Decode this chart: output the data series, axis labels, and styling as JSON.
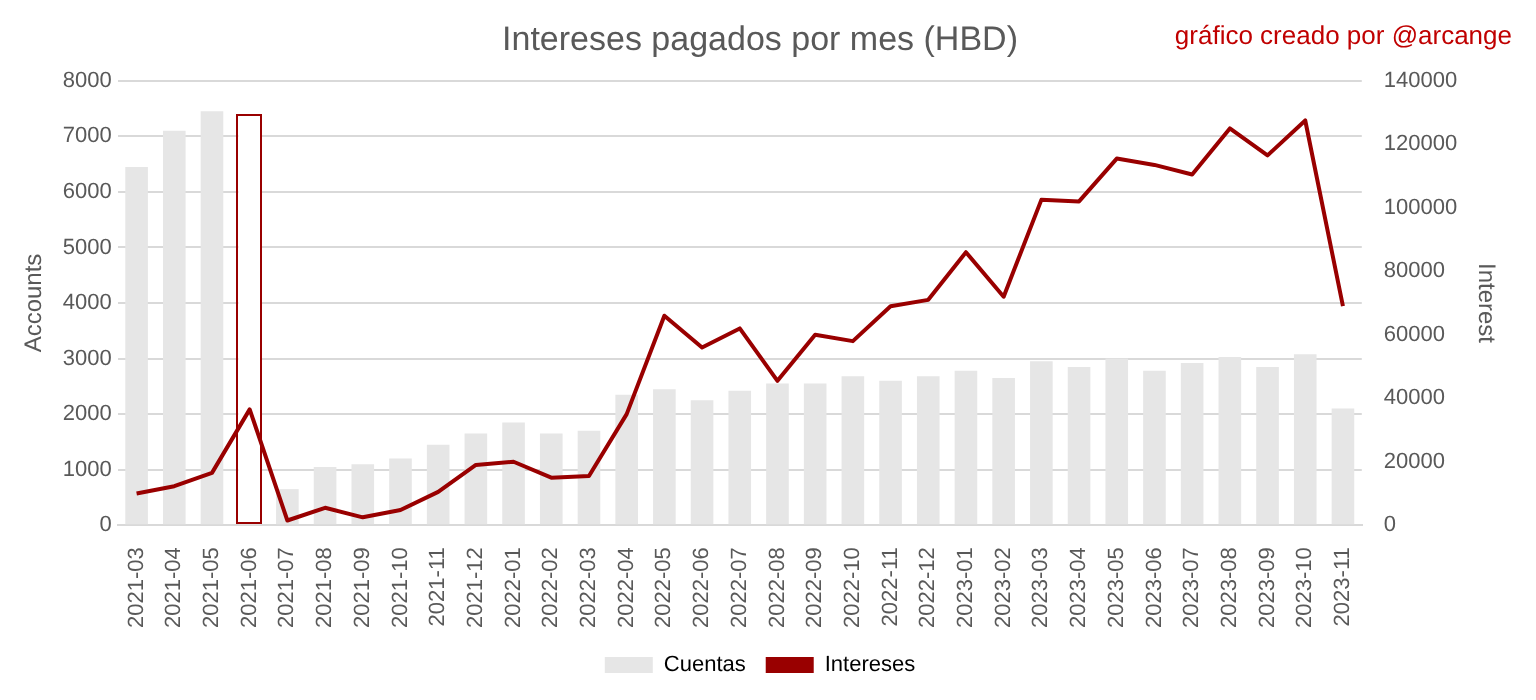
{
  "chart_data": {
    "type": "bar",
    "title": "Intereses pagados por mes (HBD)",
    "ylabel": "Accounts",
    "y2label": "Interest",
    "annotations": [
      "gráfico creado por @arcange"
    ],
    "categories": [
      "2021-03",
      "2021-04",
      "2021-05",
      "2021-06",
      "2021-07",
      "2021-08",
      "2021-09",
      "2021-10",
      "2021-11",
      "2021-12",
      "2022-01",
      "2022-02",
      "2022-03",
      "2022-04",
      "2022-05",
      "2022-06",
      "2022-07",
      "2022-08",
      "2022-09",
      "2022-10",
      "2022-11",
      "2022-12",
      "2023-01",
      "2023-02",
      "2023-03",
      "2023-04",
      "2023-05",
      "2023-06",
      "2023-07",
      "2023-08",
      "2023-09",
      "2023-10",
      "2023-11"
    ],
    "series": [
      {
        "name": "Cuentas",
        "color": "#e6e6e6",
        "colors": [
          "#e6e6e6",
          "#e6e6e6",
          "#e6e6e6",
          "#ffffff",
          "#e6e6e6",
          "#e6e6e6",
          "#e6e6e6",
          "#e6e6e6",
          "#e6e6e6",
          "#e6e6e6",
          "#e6e6e6",
          "#e6e6e6",
          "#e6e6e6",
          "#e6e6e6",
          "#e6e6e6",
          "#e6e6e6",
          "#e6e6e6",
          "#e6e6e6",
          "#e6e6e6",
          "#e6e6e6",
          "#e6e6e6",
          "#e6e6e6",
          "#e6e6e6",
          "#e6e6e6",
          "#e6e6e6",
          "#e6e6e6",
          "#e6e6e6",
          "#e6e6e6",
          "#e6e6e6",
          "#e6e6e6",
          "#e6e6e6",
          "#e6e6e6",
          "#e6e6e6"
        ],
        "values": [
          6450,
          7100,
          7450,
          7350,
          650,
          1050,
          1100,
          1200,
          1450,
          1650,
          1850,
          1650,
          1700,
          2350,
          2450,
          2250,
          2420,
          2550,
          2550,
          2680,
          2600,
          2680,
          2780,
          2650,
          2950,
          2850,
          3000,
          2780,
          2920,
          3030,
          2850,
          3080,
          2100
        ]
      },
      {
        "name": "Intereses",
        "type": "line",
        "axis": "y2",
        "color": "#990000",
        "values": [
          10000,
          12300,
          16500,
          36500,
          1500,
          5500,
          2500,
          4800,
          10500,
          19000,
          20000,
          15000,
          15500,
          35000,
          66000,
          56000,
          62000,
          45500,
          60000,
          58000,
          69000,
          71000,
          86000,
          72000,
          102500,
          102000,
          115500,
          113500,
          110500,
          125000,
          116500,
          127500,
          69000
        ]
      }
    ],
    "ylim": [
      0,
      8000
    ],
    "yticks": [
      0,
      1000,
      2000,
      3000,
      4000,
      5000,
      6000,
      7000,
      8000
    ],
    "y2lim": [
      0,
      140000
    ],
    "y2ticks": [
      0,
      20000,
      40000,
      60000,
      80000,
      100000,
      120000,
      140000
    ],
    "grid": "y",
    "legend": "bottom",
    "marker": "none"
  }
}
